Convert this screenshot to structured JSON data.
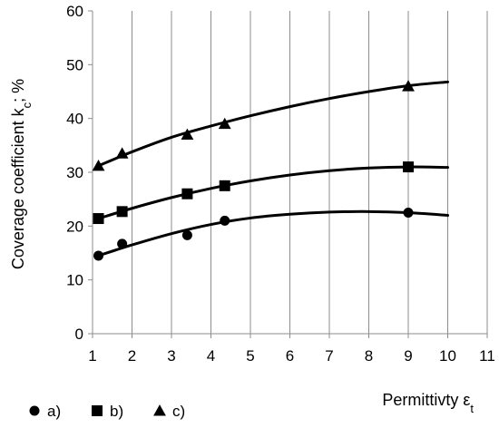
{
  "chart_data": {
    "type": "scatter",
    "title": "",
    "xlabel": {
      "main": "Permittivty ε",
      "sub": "t"
    },
    "ylabel": {
      "main": "Coverage coefficient k",
      "sub": "c",
      "tail": "; %"
    },
    "xlim": [
      1,
      11
    ],
    "ylim": [
      0,
      60
    ],
    "xticks": [
      "1",
      "2",
      "3",
      "4",
      "5",
      "6",
      "7",
      "8",
      "9",
      "10",
      "11"
    ],
    "yticks": [
      "0",
      "10",
      "20",
      "30",
      "40",
      "50",
      "60"
    ],
    "grid": "vertical",
    "legend_position": "bottom-left",
    "series": [
      {
        "name": "a)",
        "marker": "circle",
        "points": [
          [
            1.15,
            14.5
          ],
          [
            1.75,
            16.7
          ],
          [
            3.4,
            18.3
          ],
          [
            4.35,
            21.0
          ],
          [
            9.0,
            22.5
          ]
        ],
        "trend": [
          [
            1.15,
            14.5
          ],
          [
            2,
            16.5
          ],
          [
            3,
            18.6
          ],
          [
            4,
            20.3
          ],
          [
            5,
            21.5
          ],
          [
            6,
            22.2
          ],
          [
            7,
            22.6
          ],
          [
            8,
            22.7
          ],
          [
            9,
            22.5
          ],
          [
            10,
            22.0
          ]
        ]
      },
      {
        "name": "b)",
        "marker": "square",
        "points": [
          [
            1.15,
            21.4
          ],
          [
            1.75,
            22.7
          ],
          [
            3.4,
            26.0
          ],
          [
            4.35,
            27.5
          ],
          [
            9.0,
            31.0
          ]
        ],
        "trend": [
          [
            1.15,
            21.4
          ],
          [
            2,
            23.3
          ],
          [
            3,
            25.3
          ],
          [
            4,
            27.0
          ],
          [
            5,
            28.4
          ],
          [
            6,
            29.5
          ],
          [
            7,
            30.3
          ],
          [
            8,
            30.8
          ],
          [
            9,
            31.0
          ],
          [
            10,
            30.9
          ]
        ]
      },
      {
        "name": "c)",
        "marker": "triangle",
        "points": [
          [
            1.15,
            31.2
          ],
          [
            1.75,
            33.5
          ],
          [
            3.4,
            37.0
          ],
          [
            4.35,
            39.0
          ],
          [
            9.0,
            46.0
          ]
        ],
        "trend": [
          [
            1.15,
            31.2
          ],
          [
            2,
            33.8
          ],
          [
            3,
            36.5
          ],
          [
            4,
            38.6
          ],
          [
            5,
            40.5
          ],
          [
            6,
            42.2
          ],
          [
            7,
            43.7
          ],
          [
            8,
            45.0
          ],
          [
            9,
            46.1
          ],
          [
            10,
            46.8
          ]
        ]
      }
    ]
  }
}
